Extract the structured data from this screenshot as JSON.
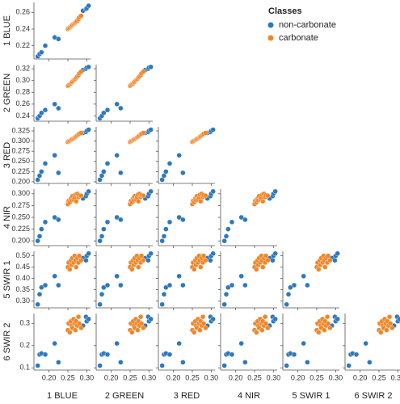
{
  "chart_data": {
    "type": "scatter",
    "legend_title": "Classes",
    "legend_position": "upper right",
    "variables": [
      "1 BLUE",
      "2 GREEN",
      "3 RED",
      "4 NIR",
      "5 SWIR 1",
      "6 SWIR 2"
    ],
    "xlim": [
      0.16,
      0.31
    ],
    "xticks": [
      {
        "value": 0.2,
        "label": "0.20"
      },
      0.25,
      {
        "value": 0.3,
        "label": "0.30"
      }
    ],
    "rows": [
      {
        "ylim": [
          0.204,
          0.272
        ],
        "yticks": [
          0.22,
          0.24,
          0.26
        ]
      },
      {
        "ylim": [
          0.231,
          0.327
        ],
        "yticks": [
          0.24,
          0.26,
          0.28,
          {
            "value": 0.3,
            "label": "0.30"
          },
          0.32
        ]
      },
      {
        "ylim": [
          0.196,
          0.335
        ],
        "yticks": [
          {
            "value": 0.2,
            "label": "0.200"
          },
          0.225,
          {
            "value": 0.25,
            "label": "0.250"
          },
          0.275,
          {
            "value": 0.3,
            "label": "0.300"
          },
          0.325
        ]
      },
      {
        "ylim": [
          0.19,
          0.31
        ],
        "yticks": [
          {
            "value": 0.2,
            "label": "0.200"
          },
          0.225,
          {
            "value": 0.25,
            "label": "0.250"
          },
          0.275,
          {
            "value": 0.3,
            "label": "0.300"
          }
        ]
      },
      {
        "ylim": [
          0.27,
          0.52
        ],
        "yticks": [
          {
            "value": 0.3,
            "label": "0.30"
          },
          0.35,
          {
            "value": 0.4,
            "label": "0.40"
          },
          0.45,
          {
            "value": 0.5,
            "label": "0.50"
          }
        ]
      },
      {
        "ylim": [
          0.09,
          0.345
        ],
        "yticks": [
          0.1,
          0.2,
          0.3
        ]
      }
    ],
    "series": [
      {
        "name": "non-carbonate",
        "color": "#2f78be",
        "x": [
          0.17,
          0.175,
          0.18,
          0.19,
          0.215,
          0.225,
          0.29,
          0.298,
          0.3,
          0.305
        ],
        "values": [
          [
            0.207,
            0.21,
            0.212,
            0.22,
            0.23,
            0.228,
            0.262,
            0.264,
            0.265,
            0.268
          ],
          [
            0.236,
            0.24,
            0.245,
            0.25,
            0.26,
            0.253,
            0.318,
            0.32,
            0.322,
            0.323
          ],
          [
            0.205,
            0.215,
            0.225,
            0.245,
            0.265,
            0.222,
            0.32,
            0.322,
            0.325,
            0.328
          ],
          [
            0.2,
            0.21,
            0.225,
            0.24,
            0.25,
            0.245,
            0.29,
            0.295,
            0.3,
            0.305
          ],
          [
            0.285,
            0.33,
            0.36,
            0.37,
            0.41,
            0.37,
            0.49,
            0.48,
            0.5,
            0.51
          ],
          [
            0.11,
            0.16,
            0.165,
            0.16,
            0.21,
            0.125,
            0.29,
            0.33,
            0.31,
            0.32
          ]
        ]
      },
      {
        "name": "carbonate",
        "color": "#f0862a",
        "x": [
          0.25,
          0.252,
          0.255,
          0.258,
          0.26,
          0.262,
          0.265,
          0.268,
          0.27,
          0.272,
          0.275,
          0.278,
          0.28,
          0.285
        ],
        "values": [
          [
            0.24,
            0.241,
            0.242,
            0.243,
            0.244,
            0.245,
            0.246,
            0.247,
            0.248,
            0.249,
            0.25,
            0.252,
            0.254,
            0.256
          ],
          [
            0.291,
            0.292,
            0.294,
            0.295,
            0.297,
            0.298,
            0.3,
            0.302,
            0.303,
            0.305,
            0.307,
            0.309,
            0.312,
            0.315
          ],
          [
            0.298,
            0.3,
            0.301,
            0.303,
            0.304,
            0.305,
            0.307,
            0.309,
            0.31,
            0.312,
            0.314,
            0.316,
            0.318,
            0.32
          ],
          [
            0.278,
            0.285,
            0.282,
            0.29,
            0.286,
            0.295,
            0.288,
            0.292,
            0.298,
            0.284,
            0.3,
            0.293,
            0.297,
            0.296
          ],
          [
            0.45,
            0.47,
            0.44,
            0.48,
            0.46,
            0.49,
            0.47,
            0.5,
            0.48,
            0.45,
            0.49,
            0.47,
            0.5,
            0.48
          ],
          [
            0.27,
            0.3,
            0.26,
            0.31,
            0.29,
            0.28,
            0.32,
            0.3,
            0.27,
            0.31,
            0.29,
            0.33,
            0.3,
            0.28
          ]
        ]
      }
    ]
  }
}
